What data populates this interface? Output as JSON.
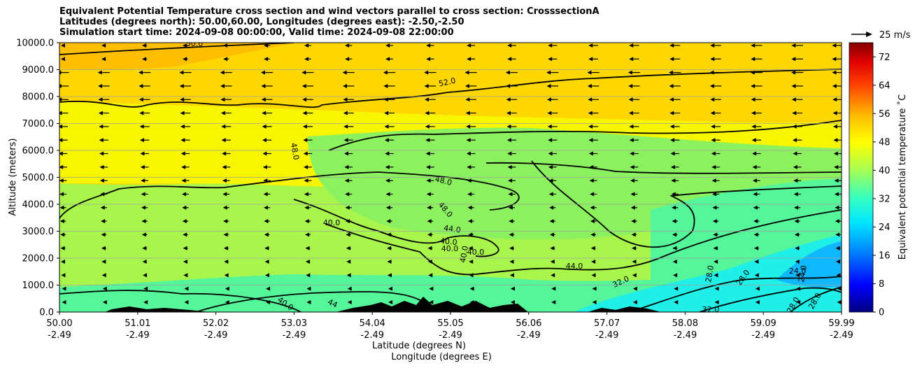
{
  "chart_data": {
    "type": "heatmap",
    "title_lines": [
      "Equivalent Potential Temperature cross section and wind vectors parallel to cross section: CrosssectionA",
      "Latitudes (degrees north): 50.00,60.00, Longitudes (degrees east): -2.50,-2.50",
      "Simulation start time: 2024-09-08 00:00:00, Valid time: 2024-09-08 22:00:00"
    ],
    "ylabel": "Altitude (meters)",
    "xlabel_primary": "Latitude (degrees N)",
    "xlabel_secondary": "Longitude (degrees E)",
    "ylim": [
      0,
      10000
    ],
    "y_ticks": [
      "0.0",
      "1000.0",
      "2000.0",
      "3000.0",
      "4000.0",
      "5000.0",
      "6000.0",
      "7000.0",
      "8000.0",
      "9000.0",
      "10000.0"
    ],
    "x_ticks": [
      {
        "lat": "50.00",
        "lon": "-2.49"
      },
      {
        "lat": "51.01",
        "lon": "-2.49"
      },
      {
        "lat": "52.02",
        "lon": "-2.49"
      },
      {
        "lat": "53.03",
        "lon": "-2.49"
      },
      {
        "lat": "54.04",
        "lon": "-2.49"
      },
      {
        "lat": "55.05",
        "lon": "-2.49"
      },
      {
        "lat": "56.06",
        "lon": "-2.49"
      },
      {
        "lat": "57.07",
        "lon": "-2.49"
      },
      {
        "lat": "58.08",
        "lon": "-2.49"
      },
      {
        "lat": "59.09",
        "lon": "-2.49"
      },
      {
        "lat": "59.99",
        "lon": "-2.49"
      }
    ],
    "colorbar": {
      "label": "Equivalent potential temperature ˚C",
      "min": 0,
      "max": 76,
      "ticks": [
        "0",
        "8",
        "16",
        "24",
        "32",
        "40",
        "48",
        "56",
        "64",
        "72"
      ]
    },
    "quiver_key": "25 m/s",
    "contour_labels": [
      "50.0",
      "52.0",
      "48.0",
      "48.0",
      "48.0",
      "44.0",
      "40.0",
      "40.0",
      "40.0",
      "40.0",
      "40.0",
      "44",
      "40.0",
      "44.0",
      "32.0",
      "28.0",
      "28.0",
      "32.0",
      "24.0",
      "24.0",
      "28.0",
      "28.0"
    ],
    "grid": true
  }
}
